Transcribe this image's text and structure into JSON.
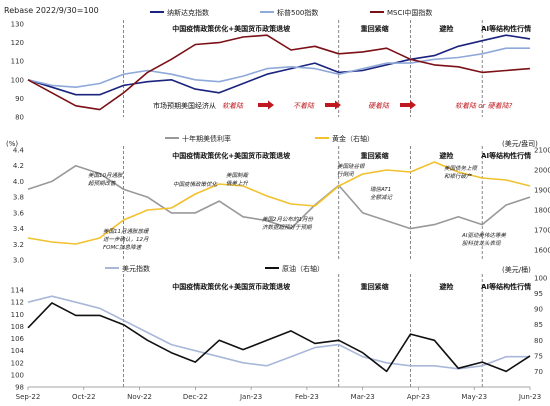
{
  "chart_data": [
    {
      "type": "line",
      "title": "Rebase 2022/9/30=100",
      "ylim": [
        80,
        130
      ],
      "yticks": [
        80,
        90,
        100,
        110,
        120,
        130
      ],
      "series": [
        {
          "name": "纳斯达克指数",
          "color": "#1a237e",
          "values": [
            100,
            96,
            92,
            92,
            97,
            99,
            100,
            95,
            93,
            98,
            103,
            106,
            109,
            104,
            105,
            108,
            111,
            113,
            118,
            121,
            124,
            122
          ]
        },
        {
          "name": "标普500指数",
          "color": "#8fa9d9",
          "values": [
            100,
            97,
            96,
            98,
            103,
            105,
            103,
            100,
            99,
            102,
            106,
            107,
            106,
            103,
            106,
            109,
            109,
            111,
            112,
            114,
            117,
            117
          ]
        },
        {
          "name": "MSCI中国指数",
          "color": "#7b1016",
          "values": [
            100,
            93,
            86,
            84,
            93,
            104,
            111,
            119,
            120,
            123,
            124,
            116,
            118,
            114,
            115,
            117,
            111,
            108,
            107,
            104,
            105,
            106
          ]
        }
      ],
      "annotations": {
        "regimes": [
          "中国疫情政策优化+美国货币政策退坡",
          "重回紧缩",
          "避险",
          "AI等结构性行情"
        ],
        "market_label": "市场预期美国经济从",
        "stages": [
          "软着陆",
          "不着陆",
          "硬着陆",
          "软着陆 or 硬着陆?"
        ]
      }
    },
    {
      "type": "line",
      "ylabel_left": "(%)",
      "ylabel_right": "(美元/盎司)",
      "ylim_left": [
        3.0,
        4.4
      ],
      "ylim_right": [
        1550,
        2100
      ],
      "yticks_left": [
        "3.0",
        "3.2",
        "3.4",
        "3.6",
        "3.8",
        "4.0",
        "4.2",
        "4.4"
      ],
      "yticks_right": [
        1600,
        1700,
        1800,
        1900,
        2000,
        2100
      ],
      "series": [
        {
          "name": "十年期美债利率",
          "axis": "left",
          "color": "#999999",
          "values": [
            3.9,
            4.0,
            4.2,
            4.1,
            3.9,
            3.8,
            3.6,
            3.6,
            3.75,
            3.55,
            3.5,
            3.4,
            3.7,
            3.95,
            3.6,
            3.5,
            3.4,
            3.45,
            3.55,
            3.45,
            3.7,
            3.8
          ]
        },
        {
          "name": "黄金（右轴）",
          "axis": "right",
          "color": "#f2c12e",
          "values": [
            1660,
            1640,
            1630,
            1660,
            1750,
            1800,
            1810,
            1880,
            1930,
            1920,
            1870,
            1830,
            1820,
            1920,
            1980,
            2000,
            1990,
            2040,
            1990,
            1960,
            1950,
            1920
          ]
        }
      ],
      "annotations": {
        "regimes": [
          "中国疫情政策优化+美国货币政策退坡",
          "重回紧缩",
          "避险",
          "AI等结构性行情"
        ],
        "notes": [
          [
            "美国10月通胀",
            "超预期改善"
          ],
          [
            "中国疫情政策优化"
          ],
          [
            "美国制裁",
            "俄美上升"
          ],
          [
            "美国硅谷银",
            "行倒闭"
          ],
          [
            "瑞信AT1",
            "全额减记"
          ],
          [
            "美国债务上限",
            "和银行破产"
          ],
          [
            "美国11月通胀放缓",
            "进一步确认，12月",
            "FOMC加息降速"
          ],
          [
            "美国2月公布的1月份",
            "济数据超预好于预期"
          ],
          [
            "AI驱动美伟达等美",
            "股科技龙头表现"
          ]
        ]
      }
    },
    {
      "type": "line",
      "ylabel_right": "(美元/桶)",
      "ylim_left": [
        98,
        116
      ],
      "ylim_right": [
        65,
        100
      ],
      "yticks_left": [
        98,
        100,
        102,
        104,
        106,
        108,
        110,
        112,
        114
      ],
      "yticks_right": [
        70,
        75,
        80,
        85,
        90,
        95,
        100
      ],
      "series": [
        {
          "name": "美元指数",
          "axis": "left",
          "color": "#a9b8d8",
          "values": [
            112,
            113,
            112,
            111,
            109,
            107,
            105,
            104,
            103,
            102,
            101.5,
            103,
            104.5,
            105,
            103,
            102,
            101.5,
            101.5,
            101,
            101.5,
            103,
            103
          ]
        },
        {
          "name": "原油（右轴）",
          "axis": "right",
          "color": "#111111",
          "values": [
            84,
            92,
            88,
            88,
            85,
            80,
            76,
            73,
            80,
            77,
            80,
            83,
            79,
            80,
            76,
            70,
            82,
            80,
            71,
            73,
            70,
            75
          ]
        }
      ],
      "annotations": {
        "regimes": [
          "中国疫情政策优化+美国货币政策退坡",
          "重回紧缩",
          "避险",
          "AI等结构性行情"
        ]
      }
    }
  ],
  "x_axis": {
    "ticks": [
      "Sep-22",
      "Oct-22",
      "Nov-22",
      "Dec-22",
      "Jan-23",
      "Feb-23",
      "Mar-23",
      "Apr-23",
      "May-23",
      "Jun-23"
    ]
  }
}
